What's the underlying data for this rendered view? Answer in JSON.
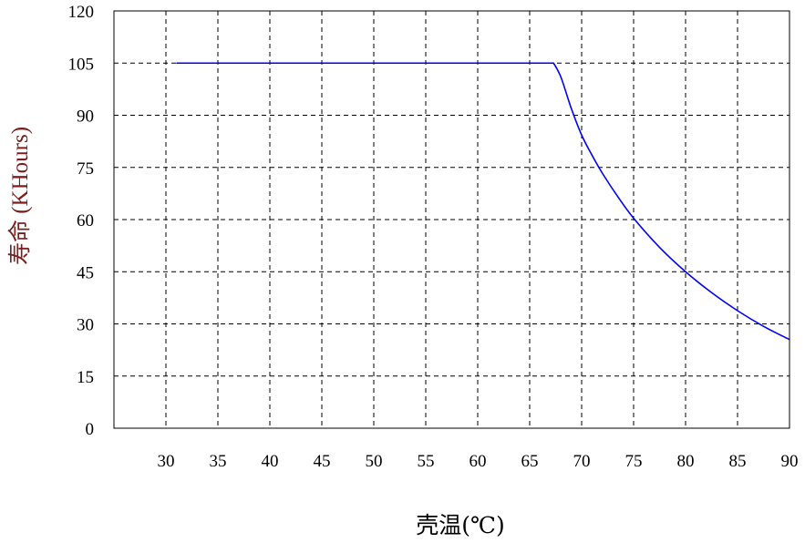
{
  "chart_data": {
    "type": "line",
    "title": "",
    "xlabel": "壳温(℃)",
    "ylabel": "寿命 (KHours)",
    "xlim": [
      25,
      90
    ],
    "ylim": [
      0,
      120
    ],
    "xticks": [
      30,
      35,
      40,
      45,
      50,
      55,
      60,
      65,
      70,
      75,
      80,
      85,
      90
    ],
    "yticks": [
      0,
      15,
      30,
      45,
      60,
      75,
      90,
      105,
      120
    ],
    "grid": true,
    "grid_style": "dashed",
    "series": [
      {
        "color": "#0000ff",
        "x": [
          31,
          67.3,
          68,
          69,
          70,
          71,
          72,
          73.5,
          75,
          77.5,
          80,
          82.5,
          85,
          87.5,
          90
        ],
        "y": [
          105,
          105,
          101,
          92,
          84.3,
          78.5,
          73.3,
          66.5,
          60.4,
          52,
          45,
          39,
          33.8,
          29.3,
          25.5
        ]
      }
    ]
  }
}
